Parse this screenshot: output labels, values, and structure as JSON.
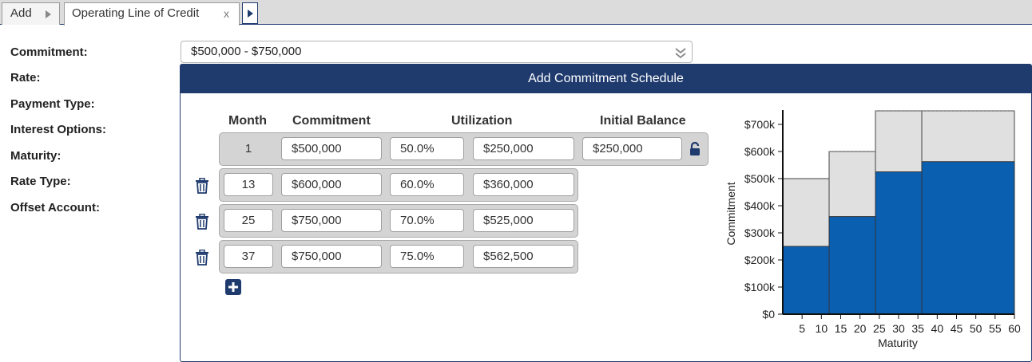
{
  "tabs": {
    "add_label": "Add",
    "active_label": "Operating Line of Credit",
    "close_label": "x"
  },
  "form": {
    "labels": [
      "Commitment:",
      "Rate:",
      "Payment Type:",
      "Interest Options:",
      "Maturity:",
      "Rate Type:",
      "Offset Account:"
    ],
    "commitment_value": "$500,000 - $750,000"
  },
  "panel": {
    "title": "Add Commitment Schedule",
    "headers": {
      "month": "Month",
      "commitment": "Commitment",
      "utilization": "Utilization",
      "initial_balance": "Initial Balance"
    },
    "rows": [
      {
        "month": "1",
        "commitment": "$500,000",
        "utilization_pct": "50.0%",
        "utilization_amt": "$250,000",
        "initial_balance": "$250,000"
      },
      {
        "month": "13",
        "commitment": "$600,000",
        "utilization_pct": "60.0%",
        "utilization_amt": "$360,000"
      },
      {
        "month": "25",
        "commitment": "$750,000",
        "utilization_pct": "70.0%",
        "utilization_amt": "$525,000"
      },
      {
        "month": "37",
        "commitment": "$750,000",
        "utilization_pct": "75.0%",
        "utilization_amt": "$562,500"
      }
    ]
  },
  "colors": {
    "header_bg": "#1f3b6e",
    "utilization_fill": "#0a5fb0",
    "commitment_fill": "#e0e0e0"
  },
  "chart_data": {
    "type": "bar",
    "xlabel": "Maturity",
    "ylabel": "Commitment",
    "xlim": [
      0,
      60
    ],
    "ylim": [
      0,
      750000
    ],
    "x_ticks": [
      "5",
      "10",
      "15",
      "20",
      "25",
      "30",
      "35",
      "40",
      "45",
      "50",
      "55",
      "60"
    ],
    "y_ticks": [
      "$0",
      "$100k",
      "$200k",
      "$300k",
      "$400k",
      "$500k",
      "$600k",
      "$700k"
    ],
    "segments": [
      {
        "start": 0,
        "end": 12,
        "commitment": 500000,
        "utilization": 250000
      },
      {
        "start": 12,
        "end": 24,
        "commitment": 600000,
        "utilization": 360000
      },
      {
        "start": 24,
        "end": 36,
        "commitment": 750000,
        "utilization": 525000
      },
      {
        "start": 36,
        "end": 60,
        "commitment": 750000,
        "utilization": 562500
      }
    ],
    "grid": false
  }
}
